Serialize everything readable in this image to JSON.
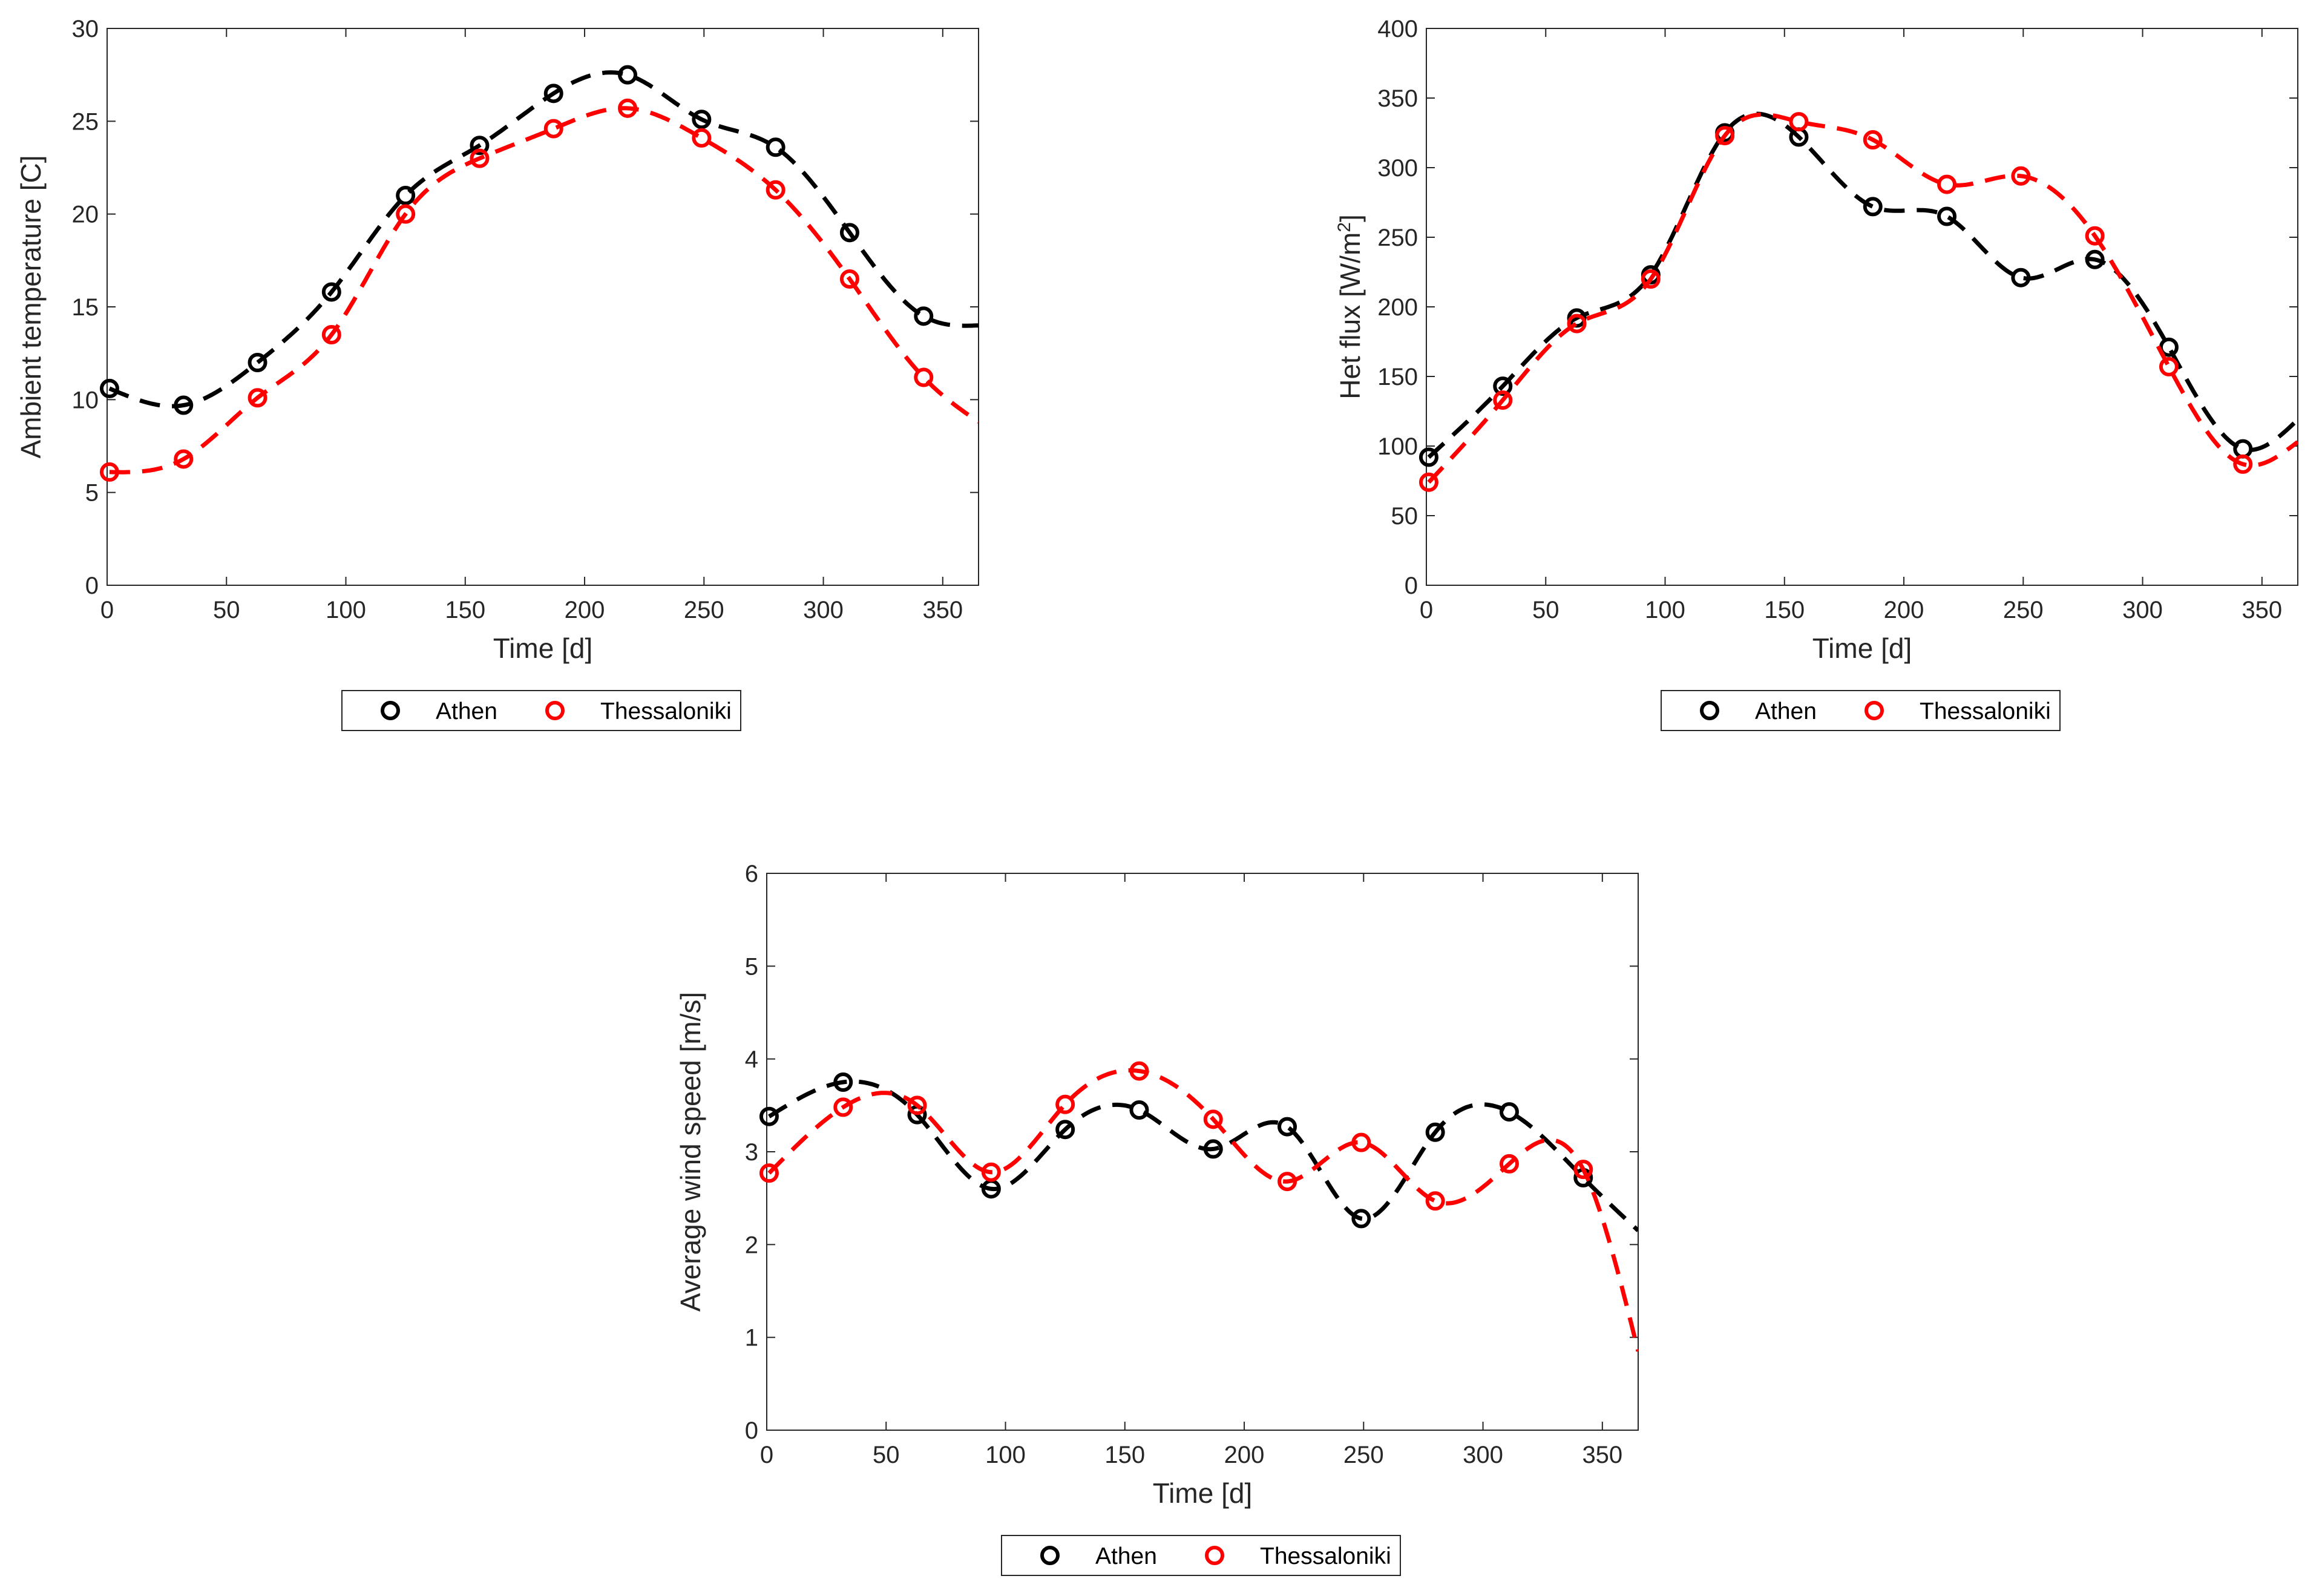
{
  "charts": [
    {
      "xlabel": "Time [d]",
      "ylabel": "Ambient temperature [C]",
      "ylabel_sup": ""
    },
    {
      "xlabel": "Time [d]",
      "ylabel": "Het flux [W/m",
      "ylabel_sup": "2",
      "ylabel_tail": "]"
    },
    {
      "xlabel": "Time [d]",
      "ylabel": "Average wind speed [m/s]",
      "ylabel_sup": ""
    }
  ],
  "chart_data": [
    {
      "type": "line",
      "xlabel": "Time [d]",
      "ylabel": "Ambient temperature [C]",
      "xlim": [
        0,
        365
      ],
      "ylim": [
        0,
        30
      ],
      "xticks": [
        0,
        50,
        100,
        150,
        200,
        250,
        300,
        350
      ],
      "yticks": [
        0,
        5,
        10,
        15,
        20,
        25,
        30
      ],
      "legend_position": "below",
      "series": [
        {
          "name": "Athen",
          "color": "#000000",
          "x": [
            1,
            32,
            63,
            94,
            125,
            156,
            187,
            218,
            249,
            280,
            311,
            342
          ],
          "y": [
            10.6,
            9.7,
            12.0,
            15.8,
            21.0,
            23.7,
            26.5,
            27.5,
            25.1,
            23.6,
            19.0,
            14.5
          ],
          "curve_end": 14.0
        },
        {
          "name": "Thessaloniki",
          "color": "#ff0000",
          "x": [
            1,
            32,
            63,
            94,
            125,
            156,
            187,
            218,
            249,
            280,
            311,
            342
          ],
          "y": [
            6.1,
            6.8,
            10.1,
            13.5,
            20.0,
            23.0,
            24.6,
            25.7,
            24.1,
            21.3,
            16.5,
            11.2
          ],
          "curve_end": 8.8
        }
      ]
    },
    {
      "type": "line",
      "xlabel": "Time [d]",
      "ylabel": "Het flux [W/m2]",
      "xlim": [
        0,
        365
      ],
      "ylim": [
        0,
        400
      ],
      "xticks": [
        0,
        50,
        100,
        150,
        200,
        250,
        300,
        350
      ],
      "yticks": [
        0,
        50,
        100,
        150,
        200,
        250,
        300,
        350,
        400
      ],
      "legend_position": "below",
      "series": [
        {
          "name": "Athen",
          "color": "#000000",
          "x": [
            1,
            32,
            63,
            94,
            125,
            156,
            187,
            218,
            249,
            280,
            311,
            342
          ],
          "y": [
            92,
            143,
            192,
            223,
            325,
            322,
            272,
            265,
            221,
            234,
            171,
            98
          ],
          "curve_end": 119
        },
        {
          "name": "Thessaloniki",
          "color": "#ff0000",
          "x": [
            1,
            32,
            63,
            94,
            125,
            156,
            187,
            218,
            249,
            280,
            311,
            342
          ],
          "y": [
            74,
            133,
            188,
            220,
            323,
            333,
            320,
            288,
            294,
            251,
            157,
            87
          ],
          "curve_end": 103
        }
      ]
    },
    {
      "type": "line",
      "xlabel": "Time [d]",
      "ylabel": "Average wind speed [m/s]",
      "xlim": [
        0,
        365
      ],
      "ylim": [
        0,
        6
      ],
      "xticks": [
        0,
        50,
        100,
        150,
        200,
        250,
        300,
        350
      ],
      "yticks": [
        0,
        1,
        2,
        3,
        4,
        5,
        6
      ],
      "legend_position": "below",
      "series": [
        {
          "name": "Athen",
          "color": "#000000",
          "x": [
            1,
            32,
            63,
            94,
            125,
            156,
            187,
            218,
            249,
            280,
            311,
            342
          ],
          "y": [
            3.38,
            3.75,
            3.4,
            2.6,
            3.24,
            3.45,
            3.03,
            3.27,
            2.28,
            3.21,
            3.43,
            2.72
          ],
          "curve_end": 2.15
        },
        {
          "name": "Thessaloniki",
          "color": "#ff0000",
          "x": [
            1,
            32,
            63,
            94,
            125,
            156,
            187,
            218,
            249,
            280,
            311,
            342
          ],
          "y": [
            2.77,
            3.48,
            3.5,
            2.78,
            3.51,
            3.87,
            3.35,
            2.68,
            3.1,
            2.47,
            2.87,
            2.81
          ],
          "curve_end": 0.85
        }
      ]
    }
  ]
}
